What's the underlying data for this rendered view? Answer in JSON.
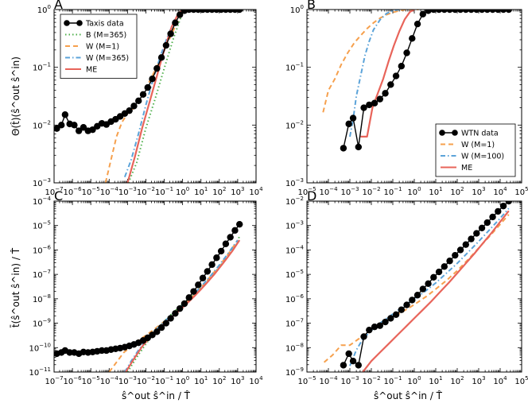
{
  "colors": {
    "black": "#000000",
    "green": "#4daf4a",
    "orange": "#f6a04d",
    "blue": "#5ba3d9",
    "red": "#e8645a"
  },
  "y_label_top": "Θ(t̂)(ŝ^out ŝ^in)",
  "y_label_bottom": "t̄(ŝ^out ŝ^in) / T̂",
  "x_label": "ŝ^out ŝ^in / T̂",
  "chart_data": [
    {
      "panel": "A",
      "type": "line",
      "xlim": [
        -7,
        4
      ],
      "ylim": [
        -3,
        0
      ],
      "x_ticks": [
        -7,
        -6,
        -5,
        -4,
        -3,
        -2,
        -1,
        0,
        1,
        2,
        3,
        4
      ],
      "y_ticks": [
        -3,
        -2,
        -1,
        0
      ],
      "legend_position": "top-left",
      "series": [
        {
          "name": "Taxis data",
          "style": "marker-line",
          "color": "black",
          "x": [
            -6.85,
            -6.6,
            -6.4,
            -6.15,
            -5.9,
            -5.65,
            -5.4,
            -5.15,
            -4.9,
            -4.65,
            -4.4,
            -4.15,
            -3.9,
            -3.65,
            -3.4,
            -3.15,
            -2.9,
            -2.65,
            -2.4,
            -2.15,
            -1.9,
            -1.65,
            -1.4,
            -1.15,
            -0.9,
            -0.65,
            -0.4,
            -0.15,
            0.1,
            0.35,
            0.6,
            0.85,
            1.1,
            1.35,
            1.6,
            1.85,
            2.1,
            2.35,
            2.6,
            2.85,
            3.1
          ],
          "y": [
            -2.06,
            -2.0,
            -1.82,
            -1.98,
            -2.0,
            -2.1,
            -2.04,
            -2.1,
            -2.08,
            -2.02,
            -1.97,
            -1.99,
            -1.94,
            -1.9,
            -1.85,
            -1.8,
            -1.75,
            -1.67,
            -1.58,
            -1.47,
            -1.35,
            -1.2,
            -1.02,
            -0.83,
            -0.62,
            -0.42,
            -0.23,
            -0.09,
            -0.02,
            0,
            0,
            0,
            0,
            0,
            0,
            0,
            0,
            0,
            0,
            0,
            0
          ]
        },
        {
          "name": "B (M=365)",
          "style": "dotted",
          "color": "green",
          "x": [
            -2.95,
            -2.5,
            -2,
            -1.5,
            -1,
            -0.5,
            0,
            0.3
          ],
          "y": [
            -3.0,
            -2.65,
            -2.05,
            -1.55,
            -1.02,
            -0.5,
            -0.05,
            0
          ]
        },
        {
          "name": "W (M=1)",
          "style": "dashed",
          "color": "orange",
          "x": [
            -4.2,
            -3.9,
            -3.6,
            -3.3,
            -3.0,
            -2.7,
            -2.4,
            -2.1,
            -1.8,
            -1.5,
            -1.2,
            -0.9,
            -0.6,
            -0.3,
            0,
            0.3
          ],
          "y": [
            -3.0,
            -2.6,
            -2.2,
            -1.95,
            -1.8,
            -1.72,
            -1.58,
            -1.42,
            -1.24,
            -1.05,
            -0.86,
            -0.64,
            -0.43,
            -0.22,
            -0.06,
            0
          ]
        },
        {
          "name": "W (M=365)",
          "style": "dashdot",
          "color": "blue",
          "x": [
            -3.15,
            -2.8,
            -2.4,
            -2.0,
            -1.6,
            -1.2,
            -0.8,
            -0.4,
            0,
            0.3
          ],
          "y": [
            -2.9,
            -2.6,
            -2.15,
            -1.65,
            -1.2,
            -0.8,
            -0.45,
            -0.15,
            -0.02,
            0
          ]
        },
        {
          "name": "ME",
          "style": "solid",
          "color": "red",
          "x": [
            -3.0,
            -2.6,
            -2.2,
            -1.8,
            -1.4,
            -1.0,
            -0.6,
            -0.2,
            0.2,
            0.5
          ],
          "y": [
            -3.0,
            -2.55,
            -2.05,
            -1.6,
            -1.15,
            -0.7,
            -0.3,
            -0.05,
            0,
            0
          ]
        }
      ]
    },
    {
      "panel": "B",
      "type": "line",
      "xlim": [
        -5,
        5
      ],
      "ylim": [
        -3,
        0
      ],
      "x_ticks": [
        -5,
        -4,
        -3,
        -2,
        -1,
        0,
        1,
        2,
        3,
        4,
        5
      ],
      "y_ticks": [
        -3,
        -2,
        -1,
        0
      ],
      "legend_position": "bottom-right",
      "series": [
        {
          "name": "WTN data",
          "style": "marker-line",
          "color": "black",
          "x": [
            -3.3,
            -3.05,
            -2.85,
            -2.6,
            -2.35,
            -2.1,
            -1.85,
            -1.6,
            -1.35,
            -1.1,
            -0.85,
            -0.6,
            -0.35,
            -0.1,
            0.15,
            0.4,
            0.65,
            0.9,
            1.15,
            1.4,
            1.65,
            1.9,
            2.15,
            2.4,
            2.65,
            2.9,
            3.15,
            3.4,
            3.65,
            3.9,
            4.15,
            4.4
          ],
          "y": [
            -2.4,
            -1.98,
            -1.88,
            -2.38,
            -1.7,
            -1.65,
            -1.62,
            -1.55,
            -1.45,
            -1.3,
            -1.15,
            -0.98,
            -0.75,
            -0.5,
            -0.25,
            -0.08,
            -0.02,
            0,
            0,
            0,
            0,
            0,
            0,
            0,
            0,
            0,
            0,
            0,
            0,
            0,
            0,
            0
          ]
        },
        {
          "name": "W (M=1)",
          "style": "dashed",
          "color": "orange",
          "x": [
            -4.25,
            -4.0,
            -3.7,
            -3.4,
            -3.1,
            -2.8,
            -2.5,
            -2.2,
            -1.9,
            -1.6,
            -1.3,
            -1.0,
            -0.7,
            -0.4,
            -0.1,
            0.2
          ],
          "y": [
            -1.78,
            -1.4,
            -1.2,
            -0.95,
            -0.75,
            -0.58,
            -0.45,
            -0.33,
            -0.23,
            -0.15,
            -0.09,
            -0.05,
            -0.02,
            0,
            0,
            0
          ]
        },
        {
          "name": "W (M=100)",
          "style": "dashdot",
          "color": "blue",
          "x": [
            -3.0,
            -2.85,
            -2.7,
            -2.5,
            -2.3,
            -2.1,
            -1.9,
            -1.6,
            -1.3,
            -1.0,
            -0.7
          ],
          "y": [
            -2.2,
            -1.9,
            -1.5,
            -1.15,
            -0.8,
            -0.55,
            -0.35,
            -0.18,
            -0.07,
            -0.02,
            0
          ]
        },
        {
          "name": "ME",
          "style": "solid",
          "color": "red",
          "x": [
            -2.5,
            -2.2,
            -1.95,
            -1.7,
            -1.45,
            -1.2,
            -0.95,
            -0.7,
            -0.45,
            -0.2,
            0.0
          ],
          "y": [
            -2.2,
            -2.2,
            -1.7,
            -1.45,
            -1.2,
            -0.9,
            -0.62,
            -0.38,
            -0.17,
            -0.04,
            0
          ]
        }
      ]
    },
    {
      "panel": "C",
      "type": "line",
      "xlim": [
        -7,
        4
      ],
      "ylim": [
        -11,
        -4
      ],
      "x_ticks": [
        -7,
        -6,
        -5,
        -4,
        -3,
        -2,
        -1,
        0,
        1,
        2,
        3,
        4
      ],
      "y_ticks": [
        -11,
        -10,
        -9,
        -8,
        -7,
        -6,
        -5,
        -4
      ],
      "series": [
        {
          "name": "Taxis data",
          "style": "marker-line",
          "color": "black",
          "x": [
            -6.85,
            -6.6,
            -6.4,
            -6.15,
            -5.9,
            -5.65,
            -5.4,
            -5.15,
            -4.9,
            -4.65,
            -4.4,
            -4.15,
            -3.9,
            -3.65,
            -3.4,
            -3.15,
            -2.9,
            -2.65,
            -2.4,
            -2.15,
            -1.9,
            -1.65,
            -1.4,
            -1.15,
            -0.9,
            -0.65,
            -0.4,
            -0.15,
            0.1,
            0.35,
            0.6,
            0.85,
            1.1,
            1.35,
            1.6,
            1.85,
            2.1,
            2.35,
            2.6,
            2.85,
            3.1
          ],
          "y": [
            -10.25,
            -10.2,
            -10.12,
            -10.2,
            -10.2,
            -10.25,
            -10.18,
            -10.2,
            -10.18,
            -10.15,
            -10.12,
            -10.12,
            -10.08,
            -10.05,
            -10.02,
            -9.98,
            -9.93,
            -9.87,
            -9.8,
            -9.71,
            -9.6,
            -9.48,
            -9.35,
            -9.18,
            -9.0,
            -8.8,
            -8.6,
            -8.4,
            -8.2,
            -7.95,
            -7.7,
            -7.43,
            -7.15,
            -6.88,
            -6.6,
            -6.32,
            -6.05,
            -5.75,
            -5.48,
            -5.2,
            -4.95
          ]
        },
        {
          "name": "B (M=365)",
          "style": "dotted",
          "color": "green",
          "x": [
            -3.0,
            -2.5,
            -2.0,
            -1.5,
            -1.0,
            -0.5,
            0,
            0.5,
            1.0,
            1.5,
            2.0,
            2.5,
            3.0,
            3.1
          ],
          "y": [
            -11.0,
            -10.4,
            -9.85,
            -9.35,
            -8.92,
            -8.55,
            -8.22,
            -7.9,
            -7.55,
            -7.15,
            -6.7,
            -6.2,
            -5.7,
            -5.4
          ]
        },
        {
          "name": "W (M=1)",
          "style": "dashed",
          "color": "orange",
          "x": [
            -4.0,
            -3.6,
            -3.2,
            -2.8,
            -2.4,
            -2.0,
            -1.6,
            -1.2,
            -0.8,
            -0.4,
            0,
            0.5,
            1.0,
            1.5,
            2.0,
            2.5,
            3.0
          ],
          "y": [
            -11.0,
            -10.6,
            -10.2,
            -9.95,
            -9.7,
            -9.5,
            -9.28,
            -9.05,
            -8.82,
            -8.55,
            -8.3,
            -7.95,
            -7.55,
            -7.1,
            -6.65,
            -6.15,
            -5.6
          ]
        },
        {
          "name": "W (M=365)",
          "style": "dashdot",
          "color": "blue",
          "x": [
            -3.15,
            -2.8,
            -2.4,
            -2.0,
            -1.6,
            -1.2,
            -0.8,
            -0.4,
            0,
            0.5,
            1.0,
            1.5,
            2.0,
            2.5,
            3.0
          ],
          "y": [
            -11.0,
            -10.55,
            -10.1,
            -9.7,
            -9.38,
            -9.08,
            -8.8,
            -8.52,
            -8.25,
            -7.9,
            -7.5,
            -7.08,
            -6.62,
            -6.12,
            -5.6
          ]
        },
        {
          "name": "ME",
          "style": "solid",
          "color": "red",
          "x": [
            -3.1,
            -2.6,
            -2.2,
            -1.8,
            -1.4,
            -1.0,
            -0.6,
            -0.2,
            0.2,
            0.7,
            1.2,
            1.7,
            2.2,
            2.7,
            3.1
          ],
          "y": [
            -11.0,
            -10.4,
            -9.95,
            -9.6,
            -9.3,
            -9.02,
            -8.76,
            -8.5,
            -8.22,
            -7.85,
            -7.45,
            -7.02,
            -6.55,
            -6.05,
            -5.6
          ]
        }
      ]
    },
    {
      "panel": "D",
      "type": "line",
      "xlim": [
        -5,
        5
      ],
      "ylim": [
        -9,
        -2
      ],
      "x_ticks": [
        -5,
        -4,
        -3,
        -2,
        -1,
        0,
        1,
        2,
        3,
        4,
        5
      ],
      "y_ticks": [
        -9,
        -8,
        -7,
        -6,
        -5,
        -4,
        -3,
        -2
      ],
      "series": [
        {
          "name": "WTN data",
          "style": "marker-line",
          "color": "black",
          "x": [
            -3.3,
            -3.05,
            -2.85,
            -2.6,
            -2.35,
            -2.1,
            -1.85,
            -1.6,
            -1.35,
            -1.1,
            -0.85,
            -0.6,
            -0.35,
            -0.1,
            0.15,
            0.4,
            0.65,
            0.9,
            1.15,
            1.4,
            1.65,
            1.9,
            2.15,
            2.4,
            2.65,
            2.9,
            3.15,
            3.4,
            3.65,
            3.9,
            4.15,
            4.4
          ],
          "y": [
            -8.72,
            -8.25,
            -8.55,
            -8.72,
            -7.55,
            -7.28,
            -7.15,
            -7.1,
            -6.95,
            -6.8,
            -6.65,
            -6.45,
            -6.25,
            -6.05,
            -5.85,
            -5.6,
            -5.38,
            -5.12,
            -4.9,
            -4.68,
            -4.45,
            -4.22,
            -4.0,
            -3.78,
            -3.55,
            -3.32,
            -3.1,
            -2.88,
            -2.65,
            -2.42,
            -2.2,
            -2.0
          ]
        },
        {
          "name": "W (M=1)",
          "style": "dashed",
          "color": "orange",
          "x": [
            -4.2,
            -3.8,
            -3.4,
            -3.0,
            -2.6,
            -2.2,
            -1.8,
            -1.4,
            -1.0,
            -0.6,
            -0.2,
            0.2,
            0.6,
            1.0,
            1.5,
            2.0,
            2.5,
            3.0,
            3.5,
            4.0,
            4.4
          ],
          "y": [
            -8.6,
            -8.3,
            -7.9,
            -7.9,
            -7.65,
            -7.4,
            -7.18,
            -6.95,
            -6.75,
            -6.55,
            -6.35,
            -6.12,
            -5.88,
            -5.6,
            -5.25,
            -4.85,
            -4.4,
            -3.92,
            -3.45,
            -2.95,
            -2.55
          ]
        },
        {
          "name": "W (M=100)",
          "style": "dashdot",
          "color": "blue",
          "x": [
            -3.0,
            -2.7,
            -2.4,
            -2.0,
            -1.6,
            -1.2,
            -0.8,
            -0.4,
            0,
            0.5,
            1.0,
            1.5,
            2.0,
            2.5,
            3.0,
            3.5,
            4.0,
            4.4
          ],
          "y": [
            -8.75,
            -8.1,
            -7.65,
            -7.3,
            -7.0,
            -6.75,
            -6.5,
            -6.25,
            -6.0,
            -5.7,
            -5.35,
            -4.95,
            -4.55,
            -4.1,
            -3.65,
            -3.18,
            -2.7,
            -2.3
          ]
        },
        {
          "name": "ME",
          "style": "solid",
          "color": "red",
          "x": [
            -2.4,
            -2.0,
            -1.6,
            -1.2,
            -0.8,
            -0.4,
            0,
            0.4,
            0.8,
            1.2,
            1.6,
            2.0,
            2.4,
            2.8,
            3.2,
            3.6,
            4.0,
            4.4
          ],
          "y": [
            -9.0,
            -8.55,
            -8.2,
            -7.85,
            -7.5,
            -7.15,
            -6.8,
            -6.45,
            -6.1,
            -5.72,
            -5.35,
            -4.95,
            -4.55,
            -4.15,
            -3.72,
            -3.3,
            -2.85,
            -2.4
          ]
        }
      ]
    }
  ]
}
